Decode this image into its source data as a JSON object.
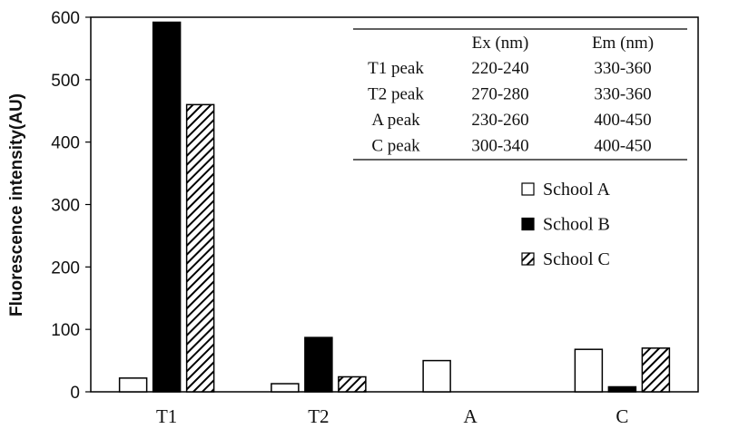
{
  "chart_data": {
    "type": "bar",
    "categories": [
      "T1",
      "T2",
      "A",
      "C"
    ],
    "series": [
      {
        "name": "School A",
        "values": [
          22,
          13,
          50,
          68
        ],
        "fill": "#ffffff"
      },
      {
        "name": "School B",
        "values": [
          592,
          87,
          0,
          8
        ],
        "fill": "#000000"
      },
      {
        "name": "School C",
        "values": [
          460,
          24,
          0,
          70
        ],
        "fill": "hatch"
      }
    ],
    "xlabel": "",
    "ylabel": "Fluorescence intensity(AU)",
    "ylim": [
      0,
      600
    ],
    "yticks": [
      "0",
      "100",
      "200",
      "300",
      "400",
      "500",
      "600"
    ],
    "legend_position": "right",
    "grid": false
  },
  "inset_table": {
    "headers": [
      "",
      "Ex (nm)",
      "Em (nm)"
    ],
    "rows": [
      [
        "T1 peak",
        "220-240",
        "330-360"
      ],
      [
        "T2 peak",
        "270-280",
        "330-360"
      ],
      [
        "A peak",
        "230-260",
        "400-450"
      ],
      [
        "C peak",
        "300-340",
        "400-450"
      ]
    ]
  }
}
